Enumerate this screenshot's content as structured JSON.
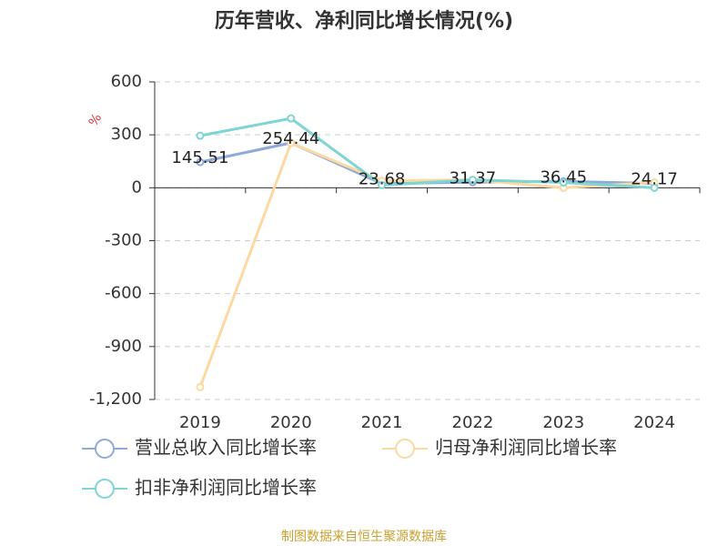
{
  "chart_data": {
    "type": "line",
    "title": "历年营收、净利同比增长情况(%)",
    "y_label": "%",
    "categories": [
      "2019",
      "2020",
      "2021",
      "2022",
      "2023",
      "2024"
    ],
    "series": [
      {
        "name": "营业总收入同比增长率",
        "color": "#8fa9d8",
        "values": [
          145.51,
          254.44,
          23.68,
          31.37,
          36.45,
          24.17
        ],
        "data_labels": true
      },
      {
        "name": "归母净利润同比增长率",
        "color": "#fcd9a0",
        "values": [
          -1130,
          254,
          40,
          45,
          0,
          30
        ]
      },
      {
        "name": "扣非净利润同比增长率",
        "color": "#7fd4d4",
        "values": [
          295,
          393,
          15,
          45,
          30,
          0
        ]
      }
    ],
    "ylim": [
      -1200,
      600
    ],
    "yticks": [
      600,
      300,
      0,
      -300,
      -600,
      -900,
      {
        "value": -1200,
        "label": "-1,200"
      }
    ],
    "grid": true,
    "source": "制图数据来自恒生聚源数据库"
  }
}
